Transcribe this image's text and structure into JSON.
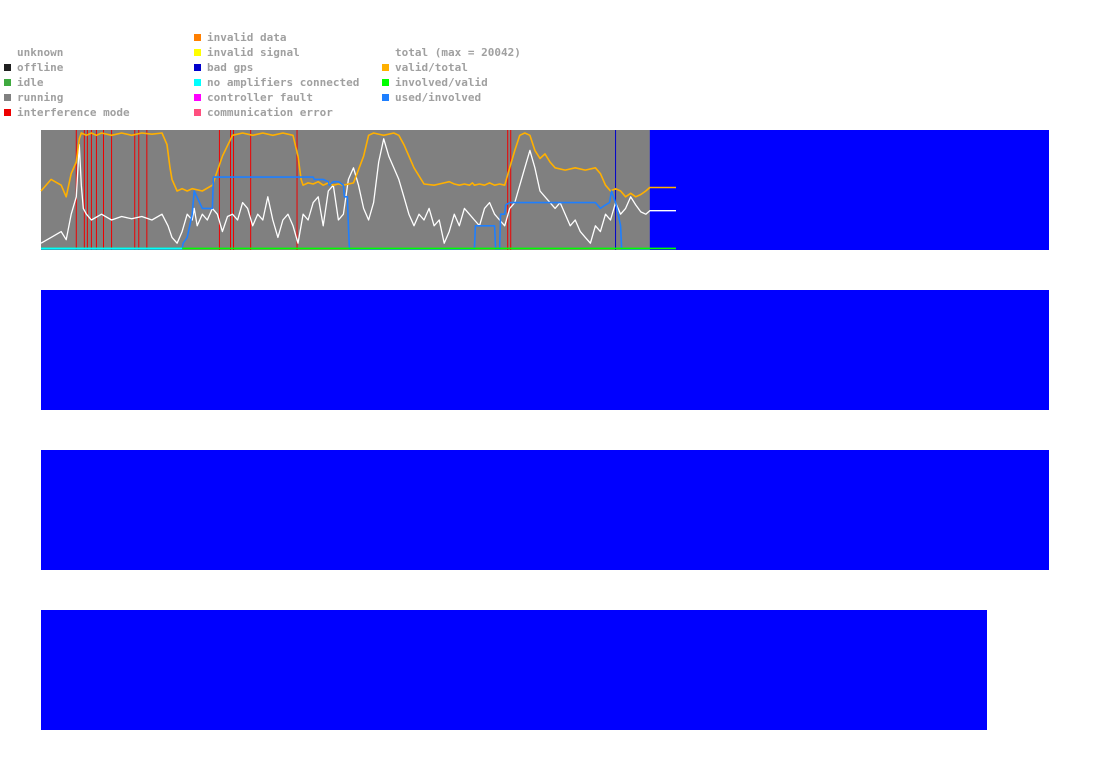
{
  "legend": {
    "col1": [
      {
        "label": "unknown",
        "color": null
      },
      {
        "label": "offline",
        "color": "#202020"
      },
      {
        "label": "idle",
        "color": "#3faa3f"
      },
      {
        "label": "running",
        "color": "#808080"
      },
      {
        "label": "interference mode",
        "color": "#ee0000"
      }
    ],
    "col2": [
      {
        "label": "invalid data",
        "color": "#ff7f00"
      },
      {
        "label": "invalid signal",
        "color": "#ffff00"
      },
      {
        "label": "bad gps",
        "color": "#0000cc"
      },
      {
        "label": "no amplifiers connected",
        "color": "#00ffff"
      },
      {
        "label": "controller fault",
        "color": "#ff00ff"
      },
      {
        "label": "communication error",
        "color": "#ff4f7f"
      }
    ],
    "col3": [
      {
        "label": "total (max = 20042)",
        "color": null
      },
      {
        "label": "valid/total",
        "color": "#ffb000"
      },
      {
        "label": "involved/valid",
        "color": "#00ff00"
      },
      {
        "label": "used/involved",
        "color": "#1e7fff"
      }
    ]
  },
  "colors": {
    "panel_bg": "#0000ff",
    "running": "#808080",
    "interference": "#ee0000",
    "bad_gps": "#0000cc",
    "total_line": "#ffffff",
    "valid_total_line": "#ffb000",
    "involved_valid_line": "#00ff00",
    "used_involved_line": "#1e7fff",
    "no_amp_line": "#00ffff"
  },
  "chart_data": {
    "type": "line",
    "title": "",
    "xlabel": "",
    "ylabel": "",
    "x_range": [
      0,
      1000
    ],
    "ylim": [
      0,
      1
    ],
    "data_extent_x": 604,
    "state_bands": [
      {
        "state": "running",
        "x0": 0,
        "x1": 604
      }
    ],
    "events": [
      {
        "state": "interference mode",
        "x": [
          35,
          43,
          46,
          50,
          55,
          62,
          70,
          93,
          97,
          105,
          177,
          188,
          191,
          208,
          254,
          463,
          466
        ]
      },
      {
        "state": "bad gps",
        "x": [
          570
        ]
      }
    ],
    "series": [
      {
        "name": "total (max = 20042)",
        "color": "#ffffff",
        "x": [
          0,
          10,
          20,
          25,
          30,
          35,
          38,
          40,
          42,
          45,
          50,
          60,
          70,
          80,
          90,
          100,
          110,
          120,
          126,
          130,
          135,
          140,
          145,
          150,
          152,
          155,
          160,
          165,
          170,
          175,
          180,
          185,
          190,
          195,
          200,
          205,
          210,
          215,
          220,
          225,
          230,
          235,
          240,
          245,
          250,
          255,
          260,
          265,
          270,
          275,
          280,
          285,
          290,
          295,
          300,
          305,
          310,
          315,
          320,
          325,
          330,
          335,
          340,
          345,
          350,
          355,
          360,
          365,
          370,
          375,
          380,
          385,
          390,
          395,
          400,
          405,
          410,
          415,
          420,
          425,
          430,
          435,
          440,
          445,
          450,
          455,
          460,
          465,
          470,
          475,
          480,
          485,
          490,
          495,
          500,
          505,
          510,
          515,
          520,
          525,
          530,
          535,
          540,
          545,
          550,
          555,
          560,
          565,
          570,
          575,
          580,
          585,
          590,
          595,
          600,
          604,
          630
        ],
        "y": [
          0.05,
          0.1,
          0.15,
          0.08,
          0.3,
          0.45,
          0.9,
          0.55,
          0.35,
          0.3,
          0.25,
          0.3,
          0.25,
          0.28,
          0.26,
          0.28,
          0.25,
          0.3,
          0.2,
          0.1,
          0.05,
          0.15,
          0.3,
          0.25,
          0.35,
          0.2,
          0.3,
          0.25,
          0.35,
          0.3,
          0.15,
          0.28,
          0.3,
          0.25,
          0.4,
          0.35,
          0.2,
          0.3,
          0.25,
          0.45,
          0.25,
          0.1,
          0.25,
          0.3,
          0.2,
          0.05,
          0.3,
          0.25,
          0.4,
          0.45,
          0.2,
          0.5,
          0.55,
          0.25,
          0.3,
          0.6,
          0.7,
          0.55,
          0.35,
          0.25,
          0.4,
          0.75,
          0.95,
          0.8,
          0.7,
          0.6,
          0.45,
          0.3,
          0.2,
          0.3,
          0.25,
          0.35,
          0.2,
          0.25,
          0.05,
          0.15,
          0.3,
          0.2,
          0.35,
          0.3,
          0.25,
          0.2,
          0.35,
          0.4,
          0.3,
          0.25,
          0.2,
          0.35,
          0.4,
          0.55,
          0.7,
          0.85,
          0.7,
          0.5,
          0.45,
          0.4,
          0.35,
          0.4,
          0.3,
          0.2,
          0.25,
          0.15,
          0.1,
          0.05,
          0.2,
          0.15,
          0.3,
          0.25,
          0.4,
          0.3,
          0.35,
          0.45,
          0.38,
          0.32,
          0.3,
          0.33,
          0.33
        ]
      },
      {
        "name": "valid/total",
        "color": "#ffb000",
        "x": [
          0,
          10,
          20,
          25,
          30,
          35,
          38,
          40,
          45,
          50,
          55,
          60,
          70,
          80,
          90,
          100,
          110,
          120,
          125,
          128,
          130,
          135,
          140,
          145,
          150,
          160,
          170,
          180,
          190,
          200,
          210,
          220,
          230,
          240,
          250,
          255,
          258,
          260,
          265,
          270,
          275,
          280,
          285,
          290,
          295,
          300,
          310,
          320,
          325,
          330,
          340,
          350,
          355,
          360,
          370,
          380,
          390,
          400,
          405,
          410,
          415,
          420,
          425,
          428,
          430,
          435,
          440,
          445,
          450,
          455,
          460,
          465,
          470,
          475,
          480,
          485,
          490,
          495,
          500,
          505,
          510,
          520,
          530,
          540,
          550,
          555,
          560,
          565,
          570,
          575,
          580,
          585,
          590,
          595,
          600,
          604,
          630
        ],
        "y": [
          0.5,
          0.6,
          0.55,
          0.45,
          0.65,
          0.75,
          0.95,
          1.0,
          0.98,
          1.0,
          0.98,
          1.0,
          0.98,
          1.0,
          0.98,
          1.0,
          0.99,
          1.0,
          0.9,
          0.7,
          0.6,
          0.5,
          0.52,
          0.5,
          0.52,
          0.5,
          0.55,
          0.8,
          0.98,
          1.0,
          0.98,
          1.0,
          0.98,
          1.0,
          0.98,
          0.8,
          0.6,
          0.55,
          0.57,
          0.56,
          0.58,
          0.55,
          0.57,
          0.55,
          0.56,
          0.55,
          0.57,
          0.8,
          0.98,
          1.0,
          0.98,
          1.0,
          0.98,
          0.9,
          0.7,
          0.56,
          0.55,
          0.57,
          0.58,
          0.56,
          0.55,
          0.56,
          0.55,
          0.57,
          0.55,
          0.56,
          0.55,
          0.57,
          0.55,
          0.56,
          0.55,
          0.7,
          0.85,
          0.98,
          1.0,
          0.98,
          0.85,
          0.78,
          0.82,
          0.75,
          0.7,
          0.68,
          0.7,
          0.68,
          0.7,
          0.65,
          0.55,
          0.5,
          0.52,
          0.5,
          0.45,
          0.48,
          0.45,
          0.47,
          0.5,
          0.53,
          0.53
        ]
      },
      {
        "name": "used/involved",
        "color": "#1e7fff",
        "x": [
          0,
          140,
          141,
          145,
          150,
          152,
          160,
          170,
          171,
          200,
          250,
          270,
          271,
          280,
          285,
          286,
          290,
          295,
          300,
          301,
          304,
          305,
          306,
          420,
          430,
          431,
          450,
          451,
          455,
          456,
          460,
          461,
          465,
          470,
          540,
          550,
          555,
          560,
          564,
          565,
          566,
          570,
          575,
          576,
          604
        ],
        "y": [
          0,
          0,
          0.05,
          0.1,
          0.3,
          0.5,
          0.35,
          0.35,
          0.62,
          0.62,
          0.62,
          0.62,
          0.6,
          0.6,
          0.58,
          0.55,
          0.58,
          0.58,
          0.55,
          0.45,
          0.45,
          0.2,
          0.0,
          0,
          0,
          0.2,
          0.2,
          0.0,
          0.0,
          0.3,
          0.3,
          0.38,
          0.4,
          0.4,
          0.4,
          0.4,
          0.35,
          0.38,
          0.4,
          0.45,
          0.5,
          0.4,
          0.2,
          0.0,
          0.0
        ]
      },
      {
        "name": "involved/valid",
        "color": "#00ff00",
        "x": [
          0,
          140,
          604,
          630
        ],
        "y": [
          0.005,
          0.005,
          0.005,
          0.005
        ]
      },
      {
        "name": "no amplifiers connected",
        "color": "#00ffff",
        "x": [
          0,
          140
        ],
        "y": [
          0.005,
          0.005
        ]
      }
    ],
    "panels": [
      {
        "id": "panel-1",
        "has_data": true
      },
      {
        "id": "panel-2",
        "has_data": false
      },
      {
        "id": "panel-3",
        "has_data": false
      },
      {
        "id": "panel-4",
        "has_data": false
      }
    ]
  }
}
